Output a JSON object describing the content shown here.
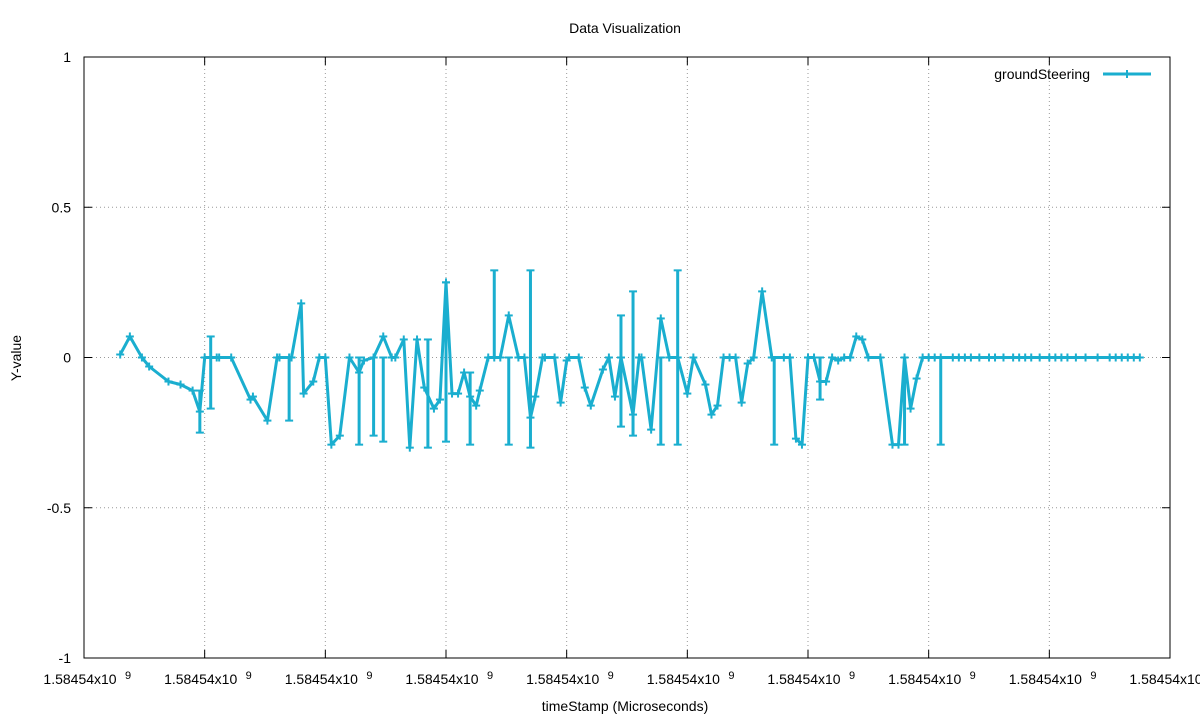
{
  "chart_data": {
    "type": "line",
    "title": "Data Visualization",
    "xlabel": "timeStamp (Microseconds)",
    "ylabel": "Y-value",
    "ylim": [
      -1,
      1
    ],
    "yticks": [
      "1",
      "0.5",
      "0",
      "-0.5",
      "-1"
    ],
    "xtick_labels": [
      "1.58454x10",
      "1.58454x10",
      "1.58454x10",
      "1.58454x10",
      "1.58454x10",
      "1.58454x10",
      "1.58454x10",
      "1.58454x10",
      "1.58454x10",
      "1.58454x10"
    ],
    "xtick_exponent": "9",
    "grid": true,
    "legend_position": "top-right",
    "series": [
      {
        "name": "groundSteering",
        "color": "#1aaecf",
        "x_range": [
          0,
          9
        ],
        "x": [
          0.3,
          0.38,
          0.48,
          0.54,
          0.7,
          0.8,
          0.9,
          0.96,
          1.0,
          1.05,
          1.1,
          1.12,
          1.22,
          1.38,
          1.4,
          1.52,
          1.6,
          1.62,
          1.7,
          1.72,
          1.8,
          1.82,
          1.9,
          1.95,
          2.0,
          2.05,
          2.12,
          2.2,
          2.28,
          2.32,
          2.4,
          2.48,
          2.55,
          2.58,
          2.65,
          2.7,
          2.76,
          2.82,
          2.9,
          2.95,
          3.0,
          3.05,
          3.1,
          3.15,
          3.2,
          3.25,
          3.28,
          3.35,
          3.4,
          3.45,
          3.52,
          3.6,
          3.65,
          3.7,
          3.74,
          3.8,
          3.82,
          3.9,
          3.95,
          4.0,
          4.02,
          4.1,
          4.15,
          4.2,
          4.3,
          4.35,
          4.4,
          4.45,
          4.55,
          4.6,
          4.62,
          4.7,
          4.78,
          4.85,
          4.92,
          5.0,
          5.05,
          5.15,
          5.2,
          5.25,
          5.3,
          5.35,
          5.4,
          5.45,
          5.5,
          5.55,
          5.62,
          5.7,
          5.8,
          5.85,
          5.9,
          5.95,
          6.0,
          6.05,
          6.1,
          6.15,
          6.2,
          6.25,
          6.3,
          6.35,
          6.4,
          6.45,
          6.5,
          6.6,
          6.7,
          6.75,
          6.8,
          6.85,
          6.9,
          6.95,
          7.0,
          7.05,
          7.1,
          7.2,
          7.25,
          7.3,
          7.35,
          7.42,
          7.5,
          7.55,
          7.62,
          7.7,
          7.75,
          7.8,
          7.85,
          7.92,
          8.0,
          8.05,
          8.1,
          8.15,
          8.22,
          8.3,
          8.4,
          8.5,
          8.55,
          8.6,
          8.65,
          8.7,
          8.75
        ],
        "values": [
          0.01,
          0.07,
          0.0,
          -0.03,
          -0.08,
          -0.09,
          -0.11,
          -0.18,
          0.0,
          0.0,
          0.0,
          0.0,
          0.0,
          -0.14,
          -0.13,
          -0.21,
          0.0,
          0.0,
          0.0,
          0.0,
          0.18,
          -0.12,
          -0.08,
          0.0,
          0.0,
          -0.29,
          -0.26,
          0.0,
          -0.05,
          -0.01,
          0.0,
          0.07,
          0.0,
          0.0,
          0.06,
          -0.3,
          0.06,
          -0.1,
          -0.17,
          -0.14,
          0.25,
          -0.12,
          -0.12,
          -0.05,
          -0.13,
          -0.16,
          -0.11,
          0.0,
          0.0,
          0.0,
          0.14,
          0.0,
          0.0,
          -0.2,
          -0.13,
          0.0,
          0.0,
          0.0,
          -0.15,
          -0.01,
          0.0,
          0.0,
          -0.1,
          -0.16,
          -0.04,
          0.0,
          -0.13,
          0.0,
          -0.19,
          0.0,
          0.0,
          -0.24,
          0.13,
          0.0,
          0.0,
          -0.12,
          0.0,
          -0.09,
          -0.19,
          -0.16,
          0.0,
          0.0,
          0.0,
          -0.15,
          -0.02,
          0.0,
          0.22,
          0.0,
          0.0,
          0.0,
          -0.27,
          -0.29,
          0.0,
          0.0,
          -0.08,
          -0.08,
          0.0,
          -0.01,
          0.0,
          0.0,
          0.07,
          0.06,
          0.0,
          0.0,
          -0.29,
          -0.29,
          0.0,
          -0.17,
          -0.07,
          0.0,
          0.0,
          0.0,
          0.0,
          0.0,
          0.0,
          0.0,
          0.0,
          0.0,
          0.0,
          0.0,
          0.0,
          0.0,
          0.0,
          0.0,
          0.0,
          0.0,
          0.0,
          0.0,
          0.0,
          0.0,
          0.0,
          0.0,
          0.0,
          0.0,
          0.0,
          0.0,
          0.0,
          0.0,
          0.0
        ],
        "spikes": [
          {
            "x": 0.96,
            "lo": -0.25,
            "hi": -0.11
          },
          {
            "x": 1.05,
            "lo": -0.17,
            "hi": 0.07
          },
          {
            "x": 1.7,
            "lo": -0.21,
            "hi": 0.0
          },
          {
            "x": 2.28,
            "lo": -0.29,
            "hi": 0.0
          },
          {
            "x": 2.4,
            "lo": -0.26,
            "hi": 0.0
          },
          {
            "x": 2.48,
            "lo": -0.28,
            "hi": 0.0
          },
          {
            "x": 2.85,
            "lo": -0.3,
            "hi": 0.06
          },
          {
            "x": 3.0,
            "lo": -0.28,
            "hi": 0.25
          },
          {
            "x": 3.2,
            "lo": -0.29,
            "hi": -0.05
          },
          {
            "x": 3.4,
            "lo": 0.0,
            "hi": 0.29
          },
          {
            "x": 3.52,
            "lo": -0.29,
            "hi": 0.0
          },
          {
            "x": 3.7,
            "lo": -0.3,
            "hi": 0.29
          },
          {
            "x": 4.45,
            "lo": -0.23,
            "hi": 0.14
          },
          {
            "x": 4.55,
            "lo": -0.26,
            "hi": 0.22
          },
          {
            "x": 4.78,
            "lo": -0.29,
            "hi": 0.0
          },
          {
            "x": 4.92,
            "lo": -0.29,
            "hi": 0.29
          },
          {
            "x": 5.72,
            "lo": -0.29,
            "hi": 0.0
          },
          {
            "x": 6.1,
            "lo": -0.14,
            "hi": 0.0
          },
          {
            "x": 6.8,
            "lo": -0.29,
            "hi": 0.0
          },
          {
            "x": 7.1,
            "lo": -0.29,
            "hi": 0.0
          }
        ]
      }
    ]
  }
}
